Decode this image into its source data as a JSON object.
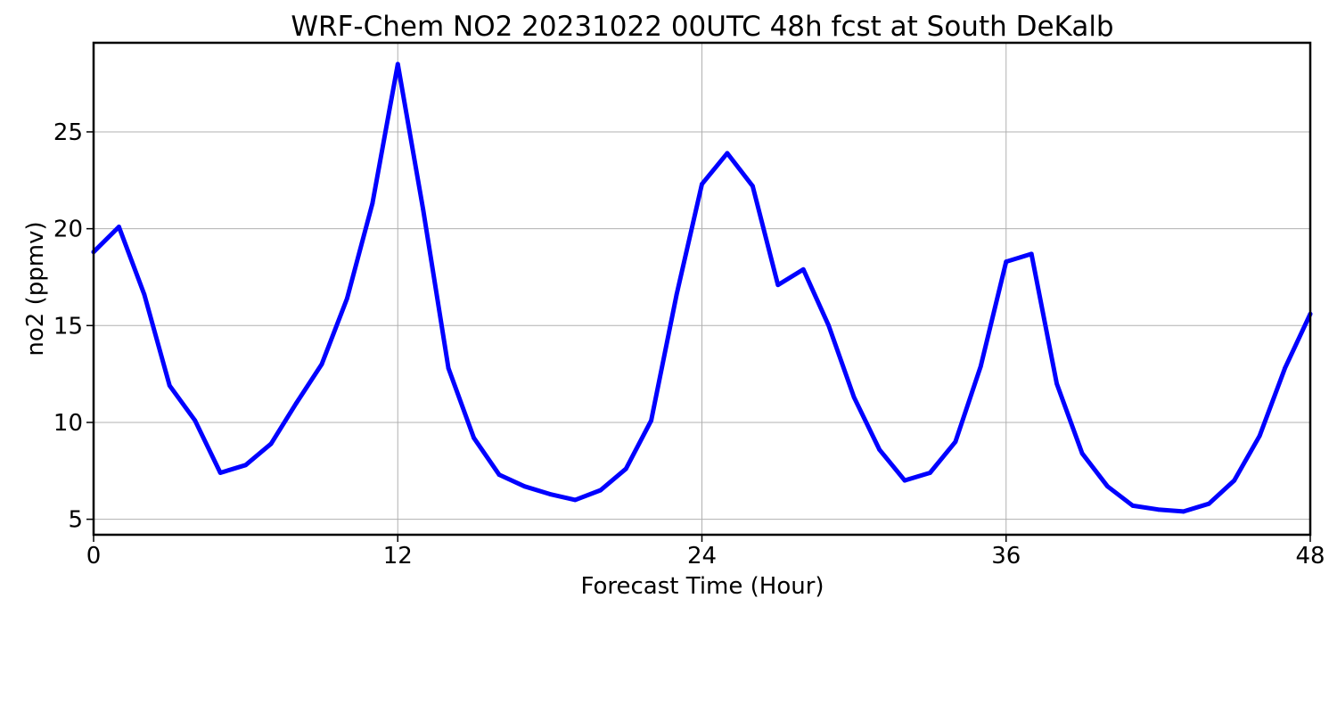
{
  "chart_data": {
    "type": "line",
    "title": "WRF-Chem NO2  20231022 00UTC 48h fcst at South DeKalb",
    "xlabel": "Forecast Time (Hour)",
    "ylabel": "no2  (ppmv)",
    "xlim": [
      0,
      48
    ],
    "ylim": [
      4.2,
      29.6
    ],
    "xticks": [
      0,
      12,
      24,
      36,
      48
    ],
    "yticks": [
      5,
      10,
      15,
      20,
      25
    ],
    "grid": true,
    "legend": "none",
    "series": [
      {
        "color": "#0000ff",
        "x": [
          0,
          1,
          2,
          3,
          4,
          5,
          6,
          7,
          8,
          9,
          10,
          11,
          12,
          13,
          14,
          15,
          16,
          17,
          18,
          19,
          20,
          21,
          22,
          23,
          24,
          25,
          26,
          27,
          28,
          29,
          30,
          31,
          32,
          33,
          34,
          35,
          36,
          37,
          38,
          39,
          40,
          41,
          42,
          43,
          44,
          45,
          46,
          47,
          48
        ],
        "y": [
          18.8,
          20.1,
          16.6,
          11.9,
          10.1,
          7.4,
          7.8,
          8.9,
          11.0,
          13.0,
          16.4,
          21.3,
          28.5,
          21.0,
          12.8,
          9.2,
          7.3,
          6.7,
          6.3,
          6.0,
          6.5,
          7.6,
          10.1,
          16.6,
          22.3,
          23.9,
          22.2,
          17.1,
          17.9,
          15.0,
          11.3,
          8.6,
          7.0,
          7.4,
          9.0,
          12.9,
          18.3,
          18.7,
          12.0,
          8.4,
          6.7,
          5.7,
          5.5,
          5.4,
          5.8,
          7.0,
          9.3,
          12.8,
          15.6
        ]
      }
    ]
  }
}
